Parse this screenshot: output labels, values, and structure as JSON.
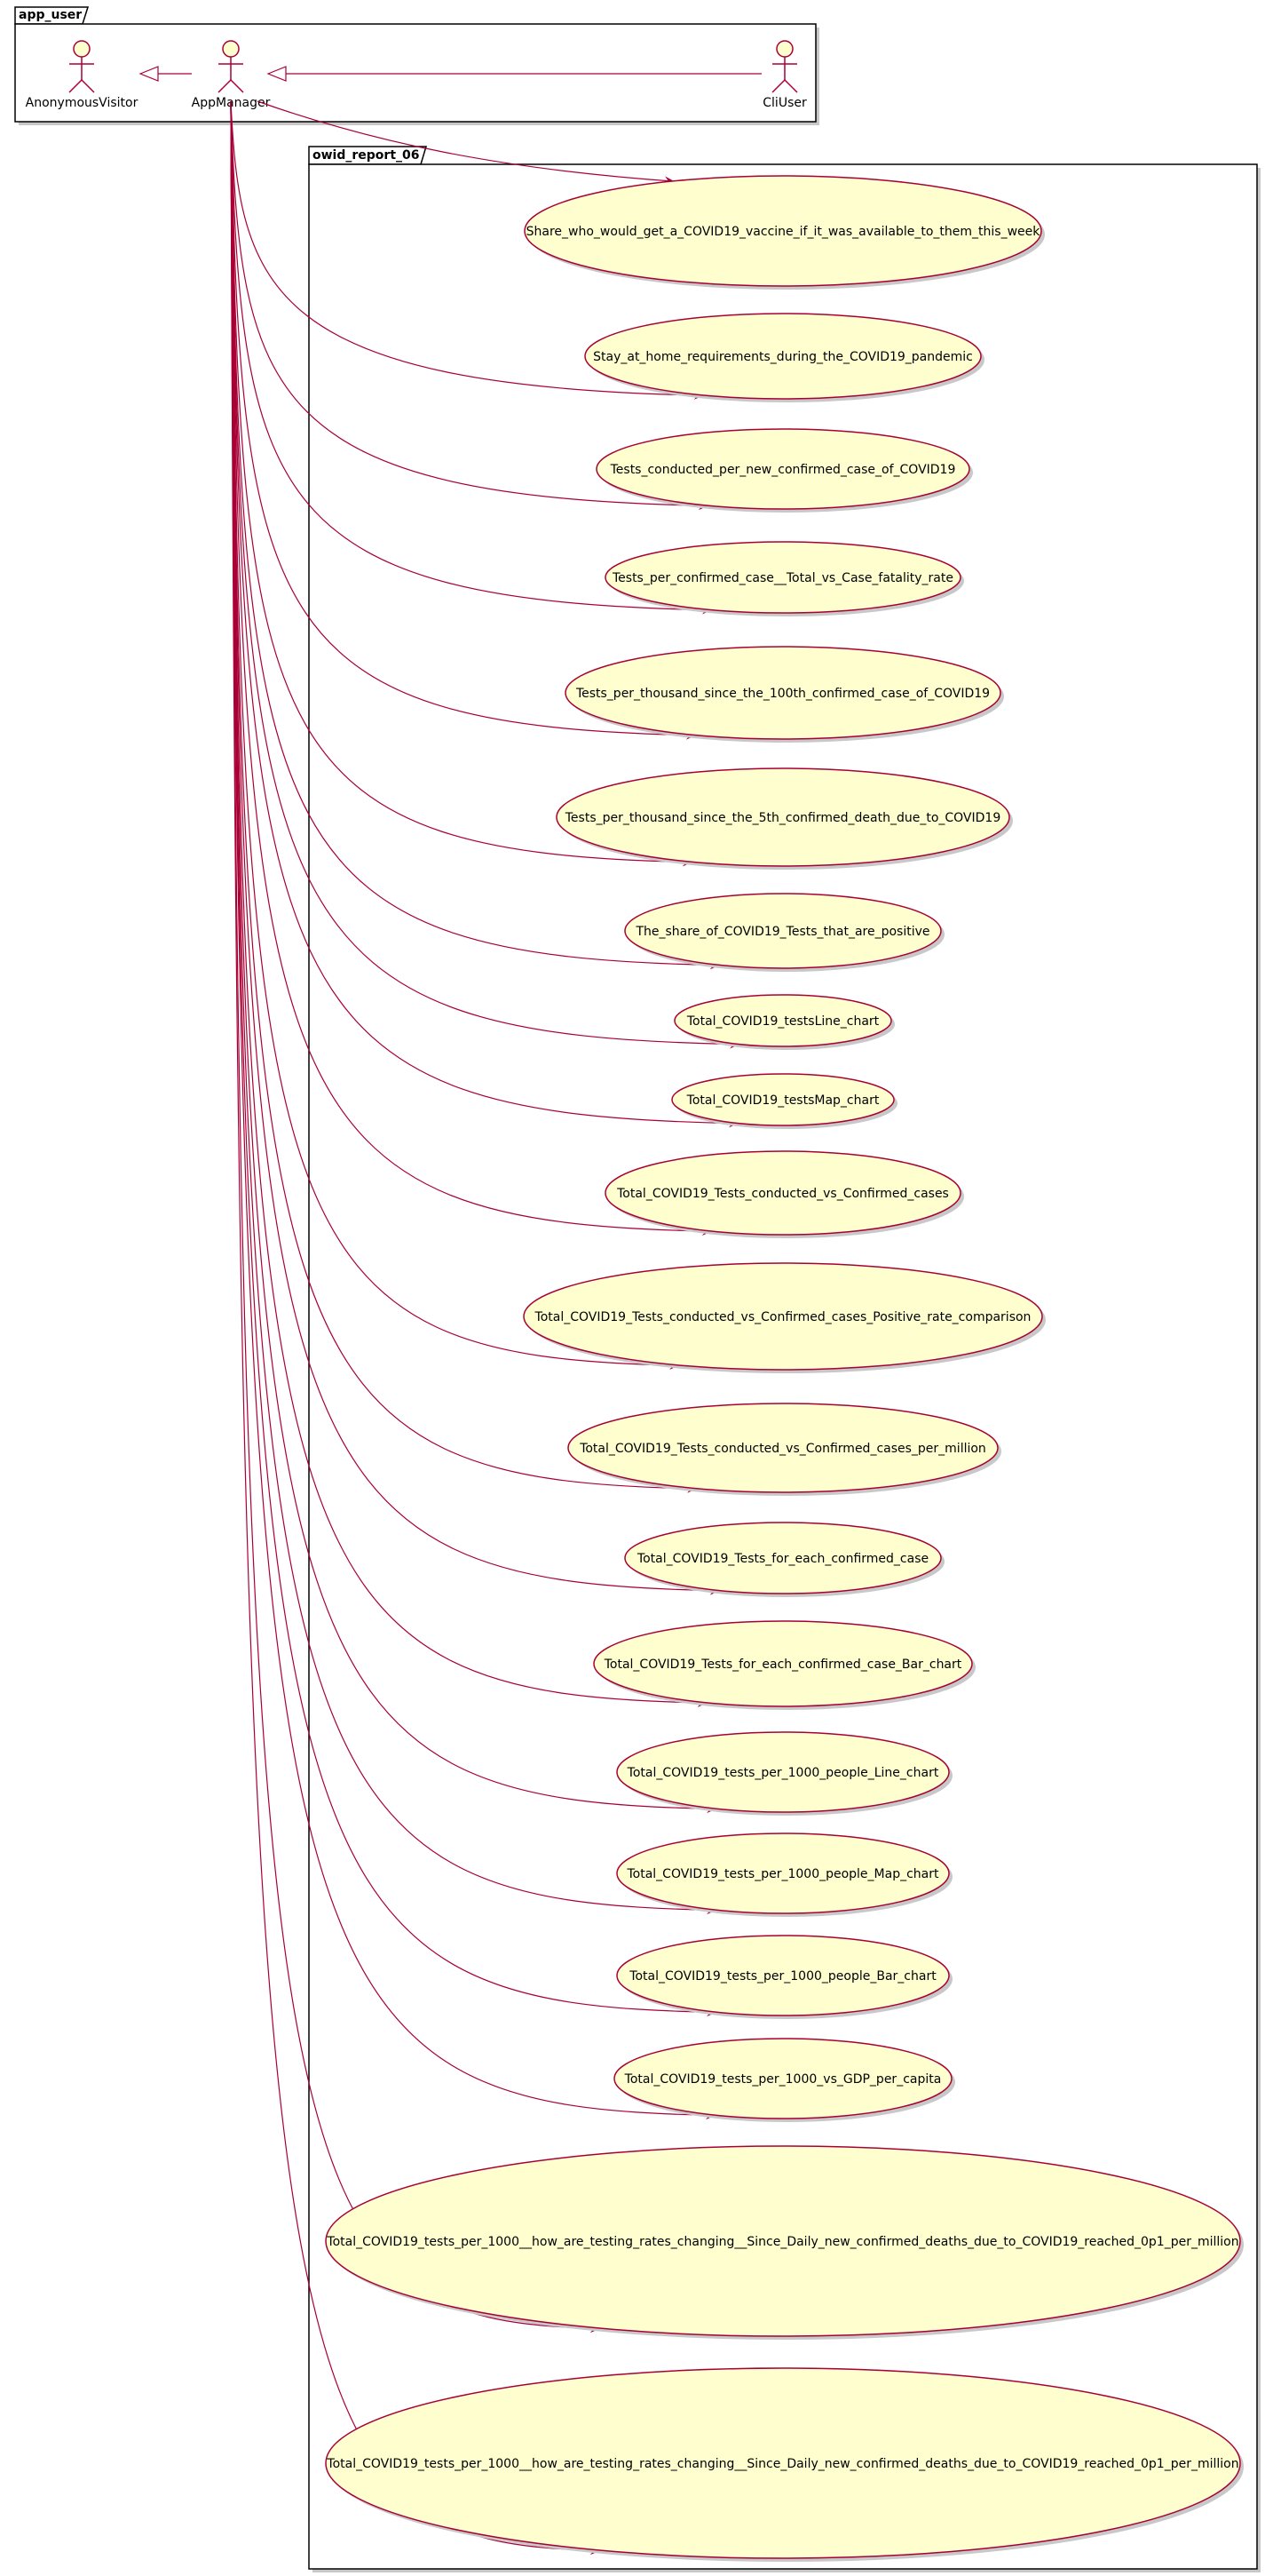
{
  "packages": {
    "app_user": {
      "title": "app_user"
    },
    "owid_report": {
      "title": "owid_report_06"
    }
  },
  "actors": [
    {
      "id": "anon",
      "label": "AnonymousVisitor"
    },
    {
      "id": "mgr",
      "label": "AppManager"
    },
    {
      "id": "cli",
      "label": "CliUser"
    }
  ],
  "use_cases": [
    "Share_who_would_get_a_COVID19_vaccine_if_it_was_available_to_them_this_week",
    "Stay_at_home_requirements_during_the_COVID19_pandemic",
    "Tests_conducted_per_new_confirmed_case_of_COVID19",
    "Tests_per_confirmed_case__Total_vs_Case_fatality_rate",
    "Tests_per_thousand_since_the_100th_confirmed_case_of_COVID19",
    "Tests_per_thousand_since_the_5th_confirmed_death_due_to_COVID19",
    "The_share_of_COVID19_Tests_that_are_positive",
    "Total_COVID19_testsLine_chart",
    "Total_COVID19_testsMap_chart",
    "Total_COVID19_Tests_conducted_vs_Confirmed_cases",
    "Total_COVID19_Tests_conducted_vs_Confirmed_cases_Positive_rate_comparison",
    "Total_COVID19_Tests_conducted_vs_Confirmed_cases_per_million",
    "Total_COVID19_Tests_for_each_confirmed_case",
    "Total_COVID19_Tests_for_each_confirmed_case_Bar_chart",
    "Total_COVID19_tests_per_1000_people_Line_chart",
    "Total_COVID19_tests_per_1000_people_Map_chart",
    "Total_COVID19_tests_per_1000_people_Bar_chart",
    "Total_COVID19_tests_per_1000_vs_GDP_per_capita",
    "Total_COVID19_tests_per_1000__how_are_testing_rates_changing__Since_Daily_new_confirmed_deaths_due_to_COVID19_reached_0p1_per_million",
    "Total_COVID19_tests_per_1000__how_are_testing_rates_changing__Since_Daily_new_confirmed_deaths_due_to_COVID19_reached_0p1_per_million"
  ],
  "colors": {
    "line": "#A80036",
    "usecase_fill": "#FEFECE",
    "border": "#000000",
    "shadow": "#c8c8c8"
  }
}
